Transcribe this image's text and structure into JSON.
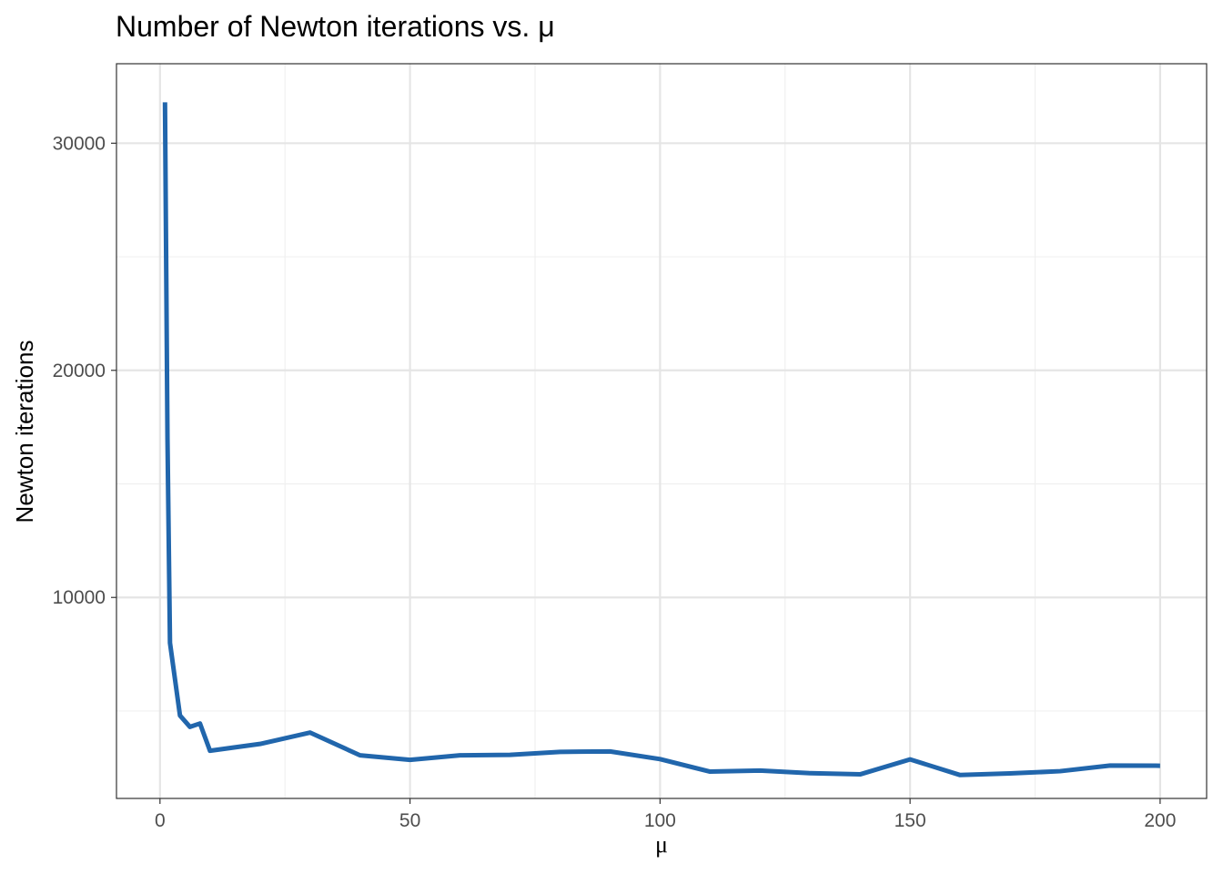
{
  "chart_data": {
    "type": "line",
    "title": "Number of Newton iterations vs. μ",
    "xlabel": "μ",
    "ylabel": "Newton iterations",
    "xlim": [
      -8.7,
      209.3
    ],
    "ylim": [
      1150,
      33500
    ],
    "x_ticks": [
      0,
      50,
      100,
      150,
      200
    ],
    "x_tick_labels": [
      "0",
      "50",
      "100",
      "150",
      "200"
    ],
    "x_minor_ticks": [
      25,
      75,
      125,
      175
    ],
    "y_ticks": [
      10000,
      20000,
      30000
    ],
    "y_tick_labels": [
      "10000",
      "20000",
      "30000"
    ],
    "y_minor_ticks": [
      5000,
      15000,
      25000
    ],
    "grid": true,
    "legend": "none",
    "colors": {
      "line": "#2166ac",
      "grid_major": "#e5e5e5",
      "grid_minor": "#f0f0f0",
      "panel_border": "#333333"
    },
    "series": [
      {
        "x": [
          1,
          1.5,
          2,
          4,
          6,
          8,
          10,
          20,
          30,
          40,
          50,
          60,
          70,
          80,
          90,
          100,
          110,
          120,
          130,
          140,
          150,
          160,
          170,
          180,
          190,
          200
        ],
        "y": [
          31800,
          17000,
          8000,
          4800,
          4300,
          4450,
          3250,
          3550,
          4050,
          3050,
          2850,
          3050,
          3070,
          3200,
          3220,
          2880,
          2330,
          2380,
          2260,
          2210,
          2870,
          2180,
          2250,
          2350,
          2600,
          2590
        ]
      }
    ]
  }
}
